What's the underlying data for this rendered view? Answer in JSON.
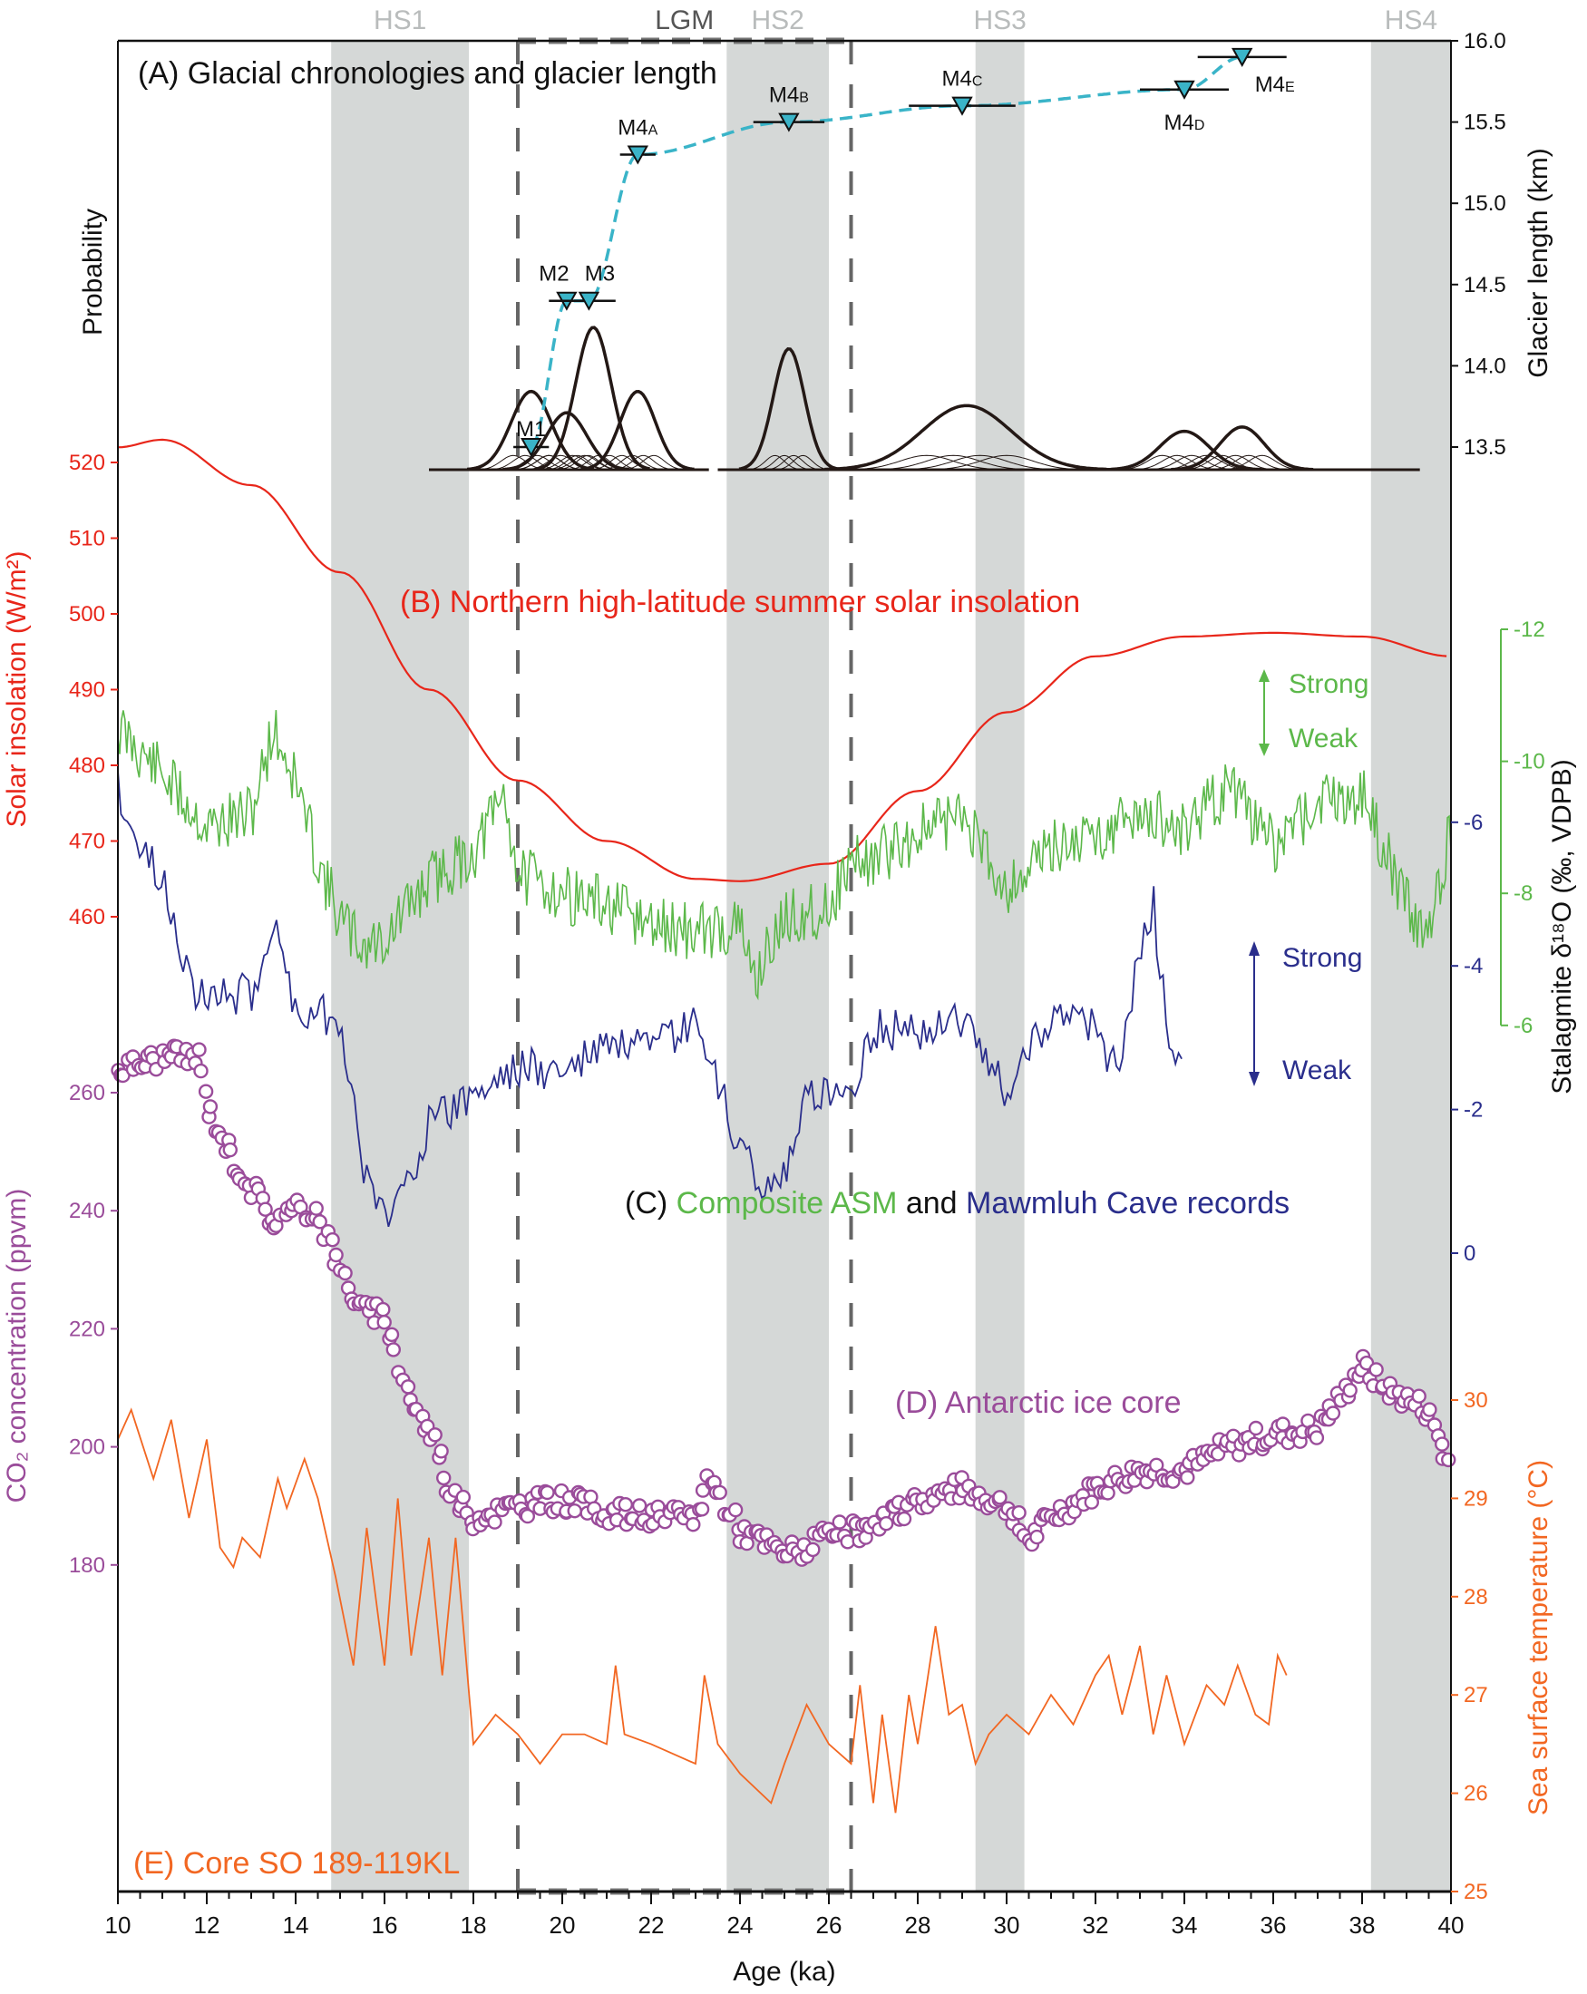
{
  "chart_data": {
    "type": "line",
    "xlabel": "Age (ka)",
    "xlim": [
      10,
      40
    ],
    "xticks": [
      "10",
      "12",
      "14",
      "16",
      "18",
      "20",
      "22",
      "24",
      "26",
      "28",
      "30",
      "32",
      "34",
      "36",
      "38",
      "40"
    ],
    "events": [
      {
        "label": "HS1",
        "range": [
          14.8,
          17.9
        ]
      },
      {
        "label": "HS2",
        "range": [
          23.7,
          26.0
        ]
      },
      {
        "label": "HS3",
        "range": [
          29.3,
          30.4
        ]
      },
      {
        "label": "HS4",
        "range": [
          38.2,
          40.0
        ]
      }
    ],
    "lgm": {
      "label": "LGM",
      "range": [
        19.0,
        26.5
      ]
    },
    "colors": {
      "insolation": "#e8261a",
      "asm": "#5cb84a",
      "mawmluh": "#2a2e8c",
      "co2": "#9a4c9a",
      "sst": "#f26722",
      "glacier": "#3ab4c8",
      "band": "#d5d8d7"
    },
    "panelA": {
      "title": "(A) Glacial chronologies and glacier length",
      "ylabel_left": "Probability",
      "ylabel_right": "Glacier length (km)",
      "yticks": [
        "13.5",
        "14.0",
        "14.5",
        "15.0",
        "15.5",
        "16.0"
      ],
      "ylim": [
        13.5,
        16.0
      ],
      "moraines": [
        {
          "main": "M1",
          "sub": "",
          "age": 19.3,
          "length": 13.5,
          "err": 0.4
        },
        {
          "main": "M2",
          "sub": "",
          "age": 20.1,
          "length": 14.4,
          "err": 0.4
        },
        {
          "main": "M3",
          "sub": "",
          "age": 20.6,
          "length": 14.4,
          "err": 0.6
        },
        {
          "main": "M4",
          "sub": "A",
          "age": 21.7,
          "length": 15.3,
          "err": 0.4
        },
        {
          "main": "M4",
          "sub": "B",
          "age": 25.1,
          "length": 15.5,
          "err": 0.8
        },
        {
          "main": "M4",
          "sub": "C",
          "age": 29.0,
          "length": 15.6,
          "err": 1.2
        },
        {
          "main": "M4",
          "sub": "D",
          "age": 34.0,
          "length": 15.7,
          "err": 1.0
        },
        {
          "main": "M4",
          "sub": "E",
          "age": 35.3,
          "length": 15.9,
          "err": 1.0
        }
      ],
      "probability_peaks": [
        {
          "age": 19.3,
          "height": 0.55,
          "sd": 0.45
        },
        {
          "age": 20.1,
          "height": 0.4,
          "sd": 0.45
        },
        {
          "age": 20.7,
          "height": 1.0,
          "sd": 0.4
        },
        {
          "age": 21.7,
          "height": 0.55,
          "sd": 0.4
        },
        {
          "age": 25.1,
          "height": 0.85,
          "sd": 0.35
        },
        {
          "age": 29.1,
          "height": 0.45,
          "sd": 1.0
        },
        {
          "age": 34.0,
          "height": 0.27,
          "sd": 0.55
        },
        {
          "age": 35.3,
          "height": 0.3,
          "sd": 0.5
        }
      ]
    },
    "panelB": {
      "title": "(B) Northern high-latitude summer solar insolation",
      "ylabel": "Solar insolation (W/m²)",
      "yticks": [
        "460",
        "470",
        "480",
        "490",
        "500",
        "510",
        "520"
      ],
      "x": [
        10,
        11,
        13,
        15,
        17,
        19,
        21,
        23,
        24,
        26,
        28,
        30,
        32,
        34,
        36,
        38,
        40
      ],
      "y": [
        522,
        523,
        517,
        505.5,
        490,
        478,
        470,
        465,
        464.7,
        467,
        476.6,
        487,
        494.4,
        497,
        497.5,
        497,
        494.4
      ]
    },
    "panelC": {
      "title_prefix": "(C) ",
      "title_green": "Composite ASM",
      "title_mid": " and ",
      "title_blue": "Mawmluh Cave records",
      "ylabel": "Stalagmite δ¹⁸O (‰, VDPB)",
      "green_yticks": [
        "-12",
        "-10",
        "-8",
        "-6"
      ],
      "blue_yticks": [
        "-6",
        "-4",
        "-2",
        "0"
      ],
      "strong": "Strong",
      "weak": "Weak",
      "asm_x": [
        10,
        11,
        12,
        13,
        13.5,
        14,
        14.5,
        15,
        15.5,
        16,
        17,
        18,
        18.7,
        19,
        20,
        21,
        22,
        23,
        24,
        24.3,
        25,
        26,
        26.5,
        27,
        28,
        29,
        30,
        31,
        32,
        33,
        34,
        35,
        36,
        37,
        38,
        39,
        39.5,
        40
      ],
      "asm_y": [
        -10.5,
        -9.8,
        -9,
        -9.2,
        -10.5,
        -9.7,
        -8.5,
        -7.6,
        -7.2,
        -7.3,
        -8.2,
        -8.6,
        -9.5,
        -8.3,
        -8,
        -7.8,
        -7.5,
        -7.4,
        -7.5,
        -6.7,
        -7.6,
        -7.8,
        -8.5,
        -8.5,
        -8.9,
        -9.2,
        -8.1,
        -8.7,
        -8.9,
        -9.2,
        -9,
        -9.6,
        -8.7,
        -9.4,
        -9.5,
        -7.8,
        -7.4,
        -9
      ],
      "mawmluh_x": [
        10,
        10.5,
        11,
        11.8,
        12,
        13,
        13.5,
        14,
        15,
        15.5,
        16,
        16.5,
        17,
        18,
        19,
        20,
        21,
        22,
        23,
        23.5,
        24,
        24.5,
        25,
        25.5,
        26,
        26.5,
        27,
        28,
        29,
        30,
        30.5,
        31,
        32,
        32.5,
        33,
        33.3,
        33.6,
        34
      ],
      "mawmluh_y": [
        -6.5,
        -5.6,
        -5.2,
        -3.5,
        -3.6,
        -3.6,
        -4.6,
        -3.4,
        -3.3,
        -1.2,
        -0.5,
        -1,
        -1.8,
        -2.2,
        -2.6,
        -2.5,
        -2.9,
        -2.8,
        -3.2,
        -2.3,
        -1.5,
        -0.9,
        -1.1,
        -2.1,
        -2.3,
        -2.3,
        -3.1,
        -3.1,
        -3.3,
        -2.2,
        -2.9,
        -3.3,
        -3.1,
        -2.5,
        -4.2,
        -4.9,
        -3.1,
        -2.3
      ]
    },
    "panelD": {
      "title": "(D) Antarctic ice core",
      "ylabel": "CO₂ concentration (ppvm)",
      "yticks": [
        "180",
        "200",
        "220",
        "240",
        "260"
      ],
      "x": [
        10,
        11,
        11.8,
        12,
        12.5,
        13,
        13.5,
        14,
        14.5,
        15,
        15.5,
        16,
        16.3,
        16.8,
        17.2,
        17.5,
        18,
        19,
        20,
        21,
        22,
        23,
        23.3,
        24,
        24.5,
        25,
        25.5,
        26,
        27,
        28,
        29,
        30,
        30.5,
        31,
        32,
        33,
        34,
        35,
        36,
        37,
        37.5,
        38,
        38.5,
        39,
        39.5,
        40
      ],
      "y": [
        264,
        266,
        266,
        258,
        250,
        244,
        238,
        240,
        240,
        230,
        223,
        222,
        214,
        205,
        200,
        192,
        188,
        190,
        191,
        189,
        188,
        188,
        195,
        186,
        184,
        182,
        183,
        185,
        186,
        191,
        193,
        190,
        184,
        188,
        193,
        196,
        196,
        200,
        202,
        203,
        208,
        214,
        210,
        208,
        206,
        196
      ]
    },
    "panelE": {
      "title": "(E) Core SO 189-119KL",
      "ylabel": "Sea surface temperature (°C)",
      "yticks": [
        "25",
        "26",
        "27",
        "28",
        "29",
        "30"
      ],
      "x": [
        10,
        10.3,
        10.8,
        11.2,
        11.6,
        12,
        12.3,
        12.6,
        12.8,
        13.2,
        13.6,
        13.8,
        14.2,
        14.5,
        14.9,
        15.3,
        15.6,
        16,
        16.3,
        16.6,
        17,
        17.3,
        17.6,
        18,
        18.5,
        19,
        19.5,
        20,
        20.5,
        21,
        21.2,
        21.4,
        22,
        23,
        23.2,
        23.5,
        24,
        24.7,
        25,
        25.5,
        26,
        26.5,
        26.7,
        27,
        27.2,
        27.5,
        27.8,
        28,
        28.4,
        28.7,
        29,
        29.3,
        29.6,
        30,
        30.5,
        31,
        31.5,
        32,
        32.3,
        32.6,
        33,
        33.3,
        33.6,
        34,
        34.5,
        34.9,
        35.2,
        35.6,
        35.9,
        36.1,
        36.3
      ],
      "y": [
        29.6,
        29.9,
        29.2,
        29.8,
        28.8,
        29.6,
        28.5,
        28.3,
        28.6,
        28.4,
        29.2,
        28.9,
        29.4,
        29.0,
        28.2,
        27.3,
        28.7,
        27.3,
        29.0,
        27.4,
        28.6,
        27.2,
        28.6,
        26.5,
        26.8,
        26.6,
        26.3,
        26.6,
        26.6,
        26.5,
        27.3,
        26.6,
        26.5,
        26.3,
        27.2,
        26.5,
        26.2,
        25.9,
        26.3,
        26.9,
        26.5,
        26.3,
        27.1,
        25.9,
        26.8,
        25.8,
        27.0,
        26.5,
        27.7,
        26.8,
        26.9,
        26.3,
        26.6,
        26.8,
        26.6,
        27.0,
        26.7,
        27.2,
        27.4,
        26.8,
        27.5,
        26.6,
        27.2,
        26.5,
        27.1,
        26.9,
        27.3,
        26.8,
        26.7,
        27.4,
        27.2
      ]
    }
  }
}
